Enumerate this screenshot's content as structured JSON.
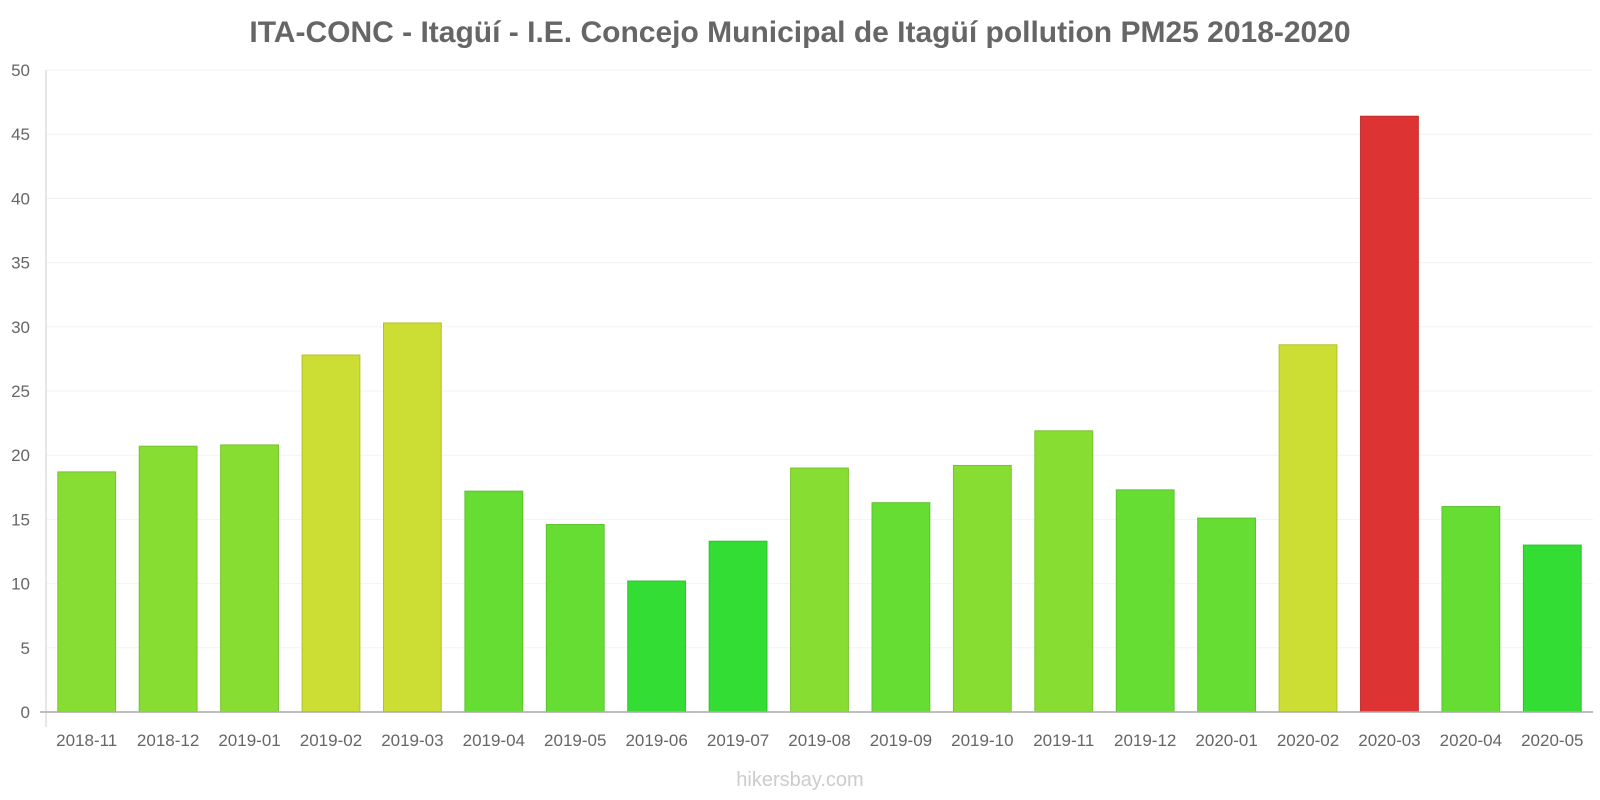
{
  "chart_data": {
    "type": "bar",
    "title": "ITA-CONC - Itagüí - I.E. Concejo Municipal de Itagüí pollution PM25 2018-2020",
    "xlabel": "",
    "ylabel": "",
    "ylim": [
      0,
      50
    ],
    "yticks": [
      0,
      5,
      10,
      15,
      20,
      25,
      30,
      35,
      40,
      45,
      50
    ],
    "grid": true,
    "categories": [
      "2018-11",
      "2018-12",
      "2019-01",
      "2019-02",
      "2019-03",
      "2019-04",
      "2019-05",
      "2019-06",
      "2019-07",
      "2019-08",
      "2019-09",
      "2019-10",
      "2019-11",
      "2019-12",
      "2020-01",
      "2020-02",
      "2020-03",
      "2020-04",
      "2020-05"
    ],
    "values": [
      18.7,
      20.7,
      20.8,
      27.8,
      30.3,
      17.2,
      14.6,
      10.2,
      13.3,
      19.0,
      16.3,
      19.2,
      21.9,
      17.3,
      15.1,
      28.6,
      46.4,
      16.0,
      13.0
    ],
    "colors": [
      "#88dd33",
      "#88dd33",
      "#88dd33",
      "#ccdd33",
      "#ccdd33",
      "#66dd33",
      "#66dd33",
      "#33dd33",
      "#33dd33",
      "#88dd33",
      "#66dd33",
      "#88dd33",
      "#88dd33",
      "#66dd33",
      "#66dd33",
      "#ccdd33",
      "#dd3333",
      "#66dd33",
      "#33dd33"
    ],
    "border_colors": [
      "#77c22d",
      "#77c22d",
      "#77c22d",
      "#b3c22d",
      "#b3c22d",
      "#5ac22d",
      "#5ac22d",
      "#2dc22d",
      "#2dc22d",
      "#77c22d",
      "#5ac22d",
      "#77c22d",
      "#77c22d",
      "#5ac22d",
      "#5ac22d",
      "#b3c22d",
      "#c22d2d",
      "#5ac22d",
      "#2dc22d"
    ]
  },
  "watermark": "hikersbay.com"
}
